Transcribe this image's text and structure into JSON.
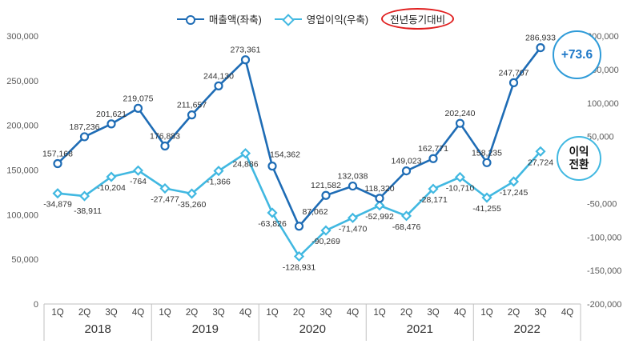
{
  "legend": {
    "series1": "매출액(좌축)",
    "series2": "영업이익(우축)",
    "yoy_label": "전년동기대비"
  },
  "annotations": {
    "growth_badge": "+73.6",
    "turnaround_line1": "이익",
    "turnaround_line2": "전환"
  },
  "chart_data": {
    "type": "line",
    "title": "",
    "quarter_labels": [
      "1Q",
      "2Q",
      "3Q",
      "4Q"
    ],
    "years": [
      "2018",
      "2019",
      "2020",
      "2021",
      "2022"
    ],
    "left_axis": {
      "min": 0,
      "max": 300000,
      "step": 50000,
      "applies_to": "매출액(좌축)"
    },
    "right_axis": {
      "min": -200000,
      "max": 200000,
      "step": 50000,
      "applies_to": "영업이익(우축)"
    },
    "grid": false,
    "legend_position": "top",
    "series": [
      {
        "name": "매출액(좌축)",
        "axis": "left",
        "marker": "circle",
        "color": "#1e6cb5",
        "values": [
          157168,
          187236,
          201621,
          219075,
          176883,
          211657,
          244130,
          273361,
          154362,
          87062,
          121582,
          132038,
          118320,
          149023,
          162771,
          202240,
          158235,
          247707,
          286933
        ]
      },
      {
        "name": "영업이익(우축)",
        "axis": "right",
        "marker": "diamond",
        "color": "#41b8e1",
        "values": [
          -34879,
          -38911,
          -10204,
          -764,
          -27477,
          -35260,
          -1366,
          24886,
          -63826,
          -128931,
          -90269,
          -71470,
          -52992,
          -68476,
          -28171,
          -10710,
          -41255,
          -17245,
          27724
        ]
      }
    ],
    "annotation_colors": {
      "growth_badge_border": "#2f9bd8",
      "growth_badge_text": "#1e78c8",
      "turnaround_border": "#41b8e1",
      "yoy_ellipse": "#e01f1f"
    }
  }
}
